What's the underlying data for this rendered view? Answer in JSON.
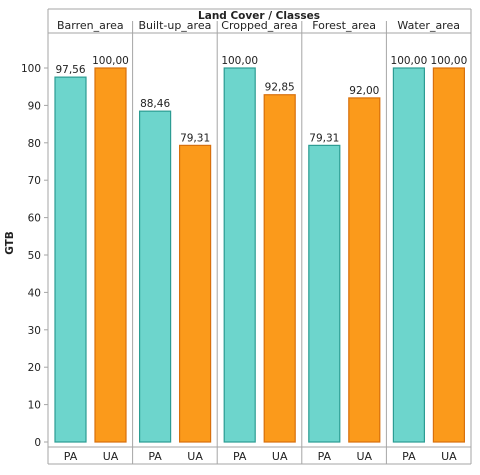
{
  "chart_data": {
    "type": "bar",
    "title": "Land Cover / Classes",
    "ylabel": "GTB",
    "xlabel": "",
    "ylim": [
      0,
      110
    ],
    "yticks": [
      0,
      10,
      20,
      30,
      40,
      50,
      60,
      70,
      80,
      90,
      100
    ],
    "measures": [
      "PA",
      "UA"
    ],
    "panels": [
      {
        "name": "Barren_area",
        "values": [
          97.56,
          100.0
        ],
        "labels": [
          "97,56",
          "100,00"
        ]
      },
      {
        "name": "Built-up_area",
        "values": [
          88.46,
          79.31
        ],
        "labels": [
          "88,46",
          "79,31"
        ]
      },
      {
        "name": "Cropped_area",
        "values": [
          100.0,
          92.85
        ],
        "labels": [
          "100,00",
          "92,85"
        ]
      },
      {
        "name": "Forest_area",
        "values": [
          79.31,
          92.0
        ],
        "labels": [
          "79,31",
          "92,00"
        ]
      },
      {
        "name": "Water_area",
        "values": [
          100.0,
          100.0
        ],
        "labels": [
          "100,00",
          "100,00"
        ]
      }
    ],
    "colors": {
      "PA": "#6dd5cc",
      "PA_edge": "#2c9c93",
      "UA": "#fb9a1b",
      "UA_edge": "#d8700c"
    },
    "grid": false
  }
}
